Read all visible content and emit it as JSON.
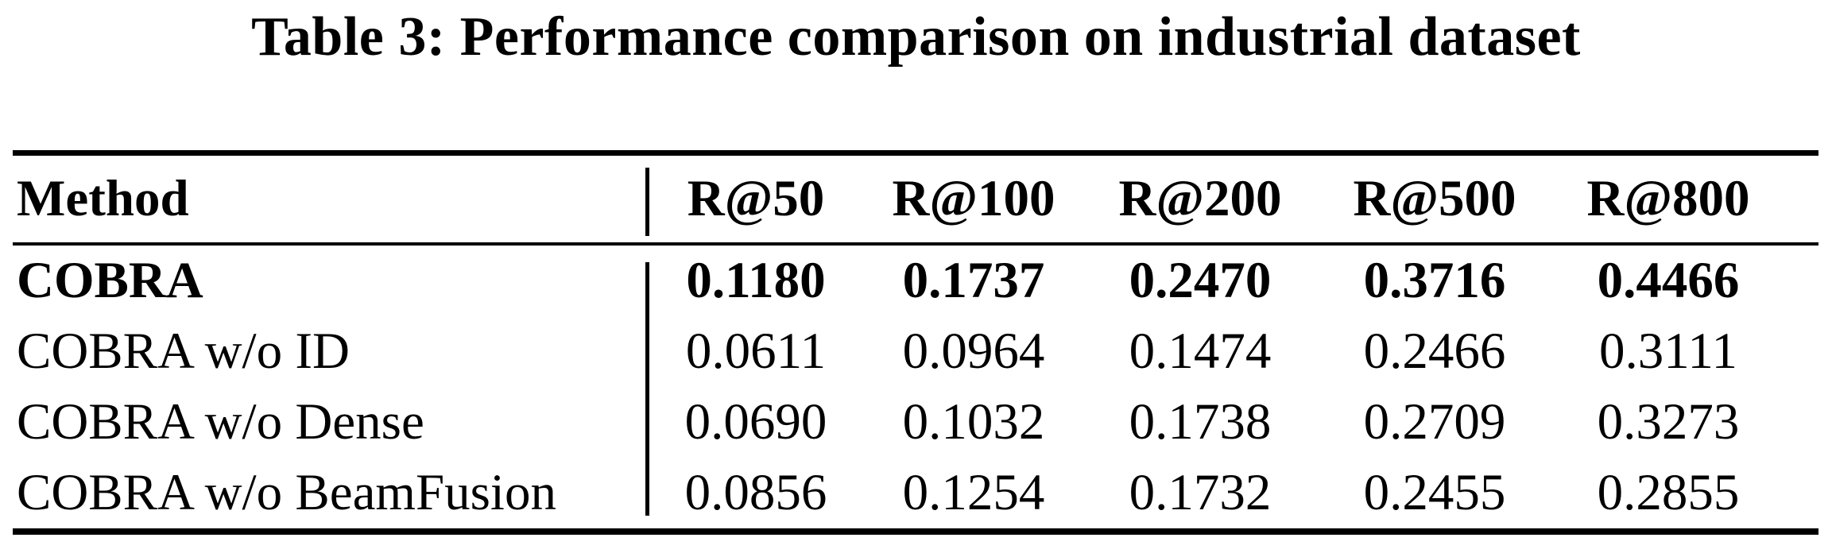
{
  "caption": "Table 3: Performance comparison on industrial dataset",
  "table": {
    "method_header": "Method",
    "columns": [
      "R@50",
      "R@100",
      "R@200",
      "R@500",
      "R@800"
    ],
    "rows": [
      {
        "method": "COBRA",
        "emphasis": "bold",
        "values": [
          "0.1180",
          "0.1737",
          "0.2470",
          "0.3716",
          "0.4466"
        ]
      },
      {
        "method": "COBRA w/o ID",
        "emphasis": "none",
        "values": [
          "0.0611",
          "0.0964",
          "0.1474",
          "0.2466",
          "0.3111"
        ]
      },
      {
        "method": "COBRA w/o Dense",
        "emphasis": "none",
        "values": [
          "0.0690",
          "0.1032",
          "0.1738",
          "0.2709",
          "0.3273"
        ]
      },
      {
        "method": "COBRA w/o BeamFusion",
        "emphasis": "none",
        "values": [
          "0.0856",
          "0.1254",
          "0.1732",
          "0.2455",
          "0.2855"
        ]
      }
    ]
  },
  "colors": {
    "text": "#000000",
    "background": "#ffffff",
    "rule": "#000000"
  },
  "chart_data": {
    "type": "table",
    "title": "Table 3: Performance comparison on industrial dataset",
    "columns": [
      "Method",
      "R@50",
      "R@100",
      "R@200",
      "R@500",
      "R@800"
    ],
    "rows": [
      [
        "COBRA",
        0.118,
        0.1737,
        0.247,
        0.3716,
        0.4466
      ],
      [
        "COBRA w/o ID",
        0.0611,
        0.0964,
        0.1474,
        0.2466,
        0.3111
      ],
      [
        "COBRA w/o Dense",
        0.069,
        0.1032,
        0.1738,
        0.2709,
        0.3273
      ],
      [
        "COBRA w/o BeamFusion",
        0.0856,
        0.1254,
        0.1732,
        0.2455,
        0.2855
      ]
    ],
    "notes": "First data row (COBRA) is bold, indicating best results; booktabs-style rules with vertical divider after Method column"
  }
}
